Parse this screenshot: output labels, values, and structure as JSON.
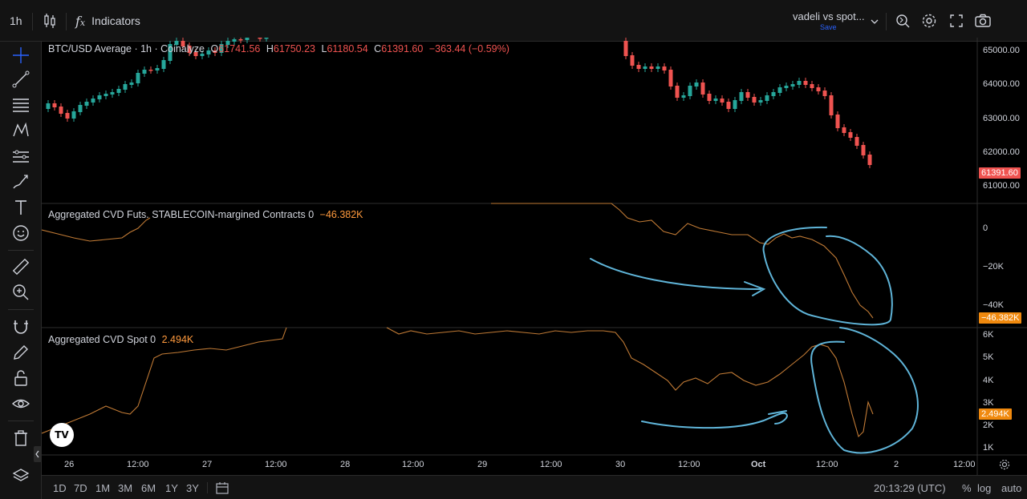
{
  "toolbar": {
    "interval": "1h",
    "indicators_label": "Indicators",
    "layout_name": "vadeli vs spot...",
    "save_label": "Save"
  },
  "main": {
    "symbol_title": "BTC/USD Average · 1h · Coinalyze",
    "ohlc": {
      "o_label": "O",
      "o": "61741.56",
      "h_label": "H",
      "h": "61750.23",
      "l_label": "L",
      "l": "61180.54",
      "c_label": "C",
      "c": "61391.60",
      "change": "−363.44 (−0.59%)"
    },
    "price_axis": [
      "65000.00",
      "64000.00",
      "63000.00",
      "62000.00",
      "61000.00"
    ],
    "last_price": "61391.60"
  },
  "pane_futures": {
    "title": "Aggregated CVD Futs. STABLECOIN-margined Contracts 0",
    "value": "−46.382K",
    "axis": [
      "0",
      "−20K",
      "−40K"
    ],
    "last_value": "−46.382K"
  },
  "pane_spot": {
    "title": "Aggregated CVD Spot 0",
    "value": "2.494K",
    "axis": [
      "6K",
      "5K",
      "4K",
      "3K",
      "2K",
      "1K"
    ],
    "last_value": "2.494K"
  },
  "time_axis": [
    "26",
    "12:00",
    "27",
    "12:00",
    "28",
    "12:00",
    "29",
    "12:00",
    "30",
    "12:00",
    "Oct",
    "12:00",
    "2",
    "12:00"
  ],
  "ranges": [
    "1D",
    "7D",
    "1M",
    "3M",
    "6M",
    "1Y",
    "3Y"
  ],
  "status": {
    "clock": "20:13:29 (UTC)",
    "percent": "%",
    "log": "log",
    "auto": "auto"
  },
  "colors": {
    "up": "#26a69a",
    "down": "#ef5350",
    "cvd_line": "#c07a35",
    "annotation": "#5fb4d8",
    "last_price_bg": "#ef5350",
    "cvd_badge_bg": "#f0890e"
  },
  "icons": {
    "logo": "tradingview-logo-icon"
  }
}
